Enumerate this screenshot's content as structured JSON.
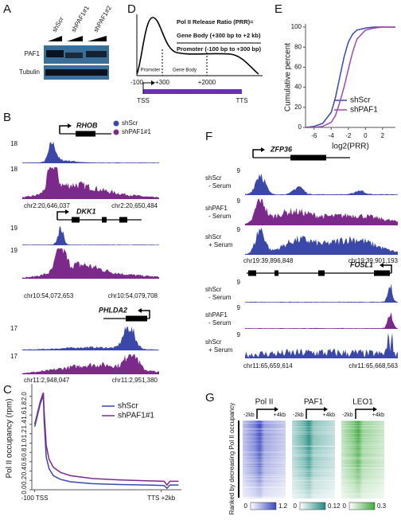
{
  "panel_labels": [
    "A",
    "B",
    "C",
    "D",
    "E",
    "F",
    "G"
  ],
  "panel_a": {
    "lanes": [
      "shScr",
      "shPAF1#1",
      "shPAF1#2"
    ],
    "rows": [
      "PAF1",
      "Tubulin"
    ]
  },
  "panel_b": {
    "legend": [
      {
        "name": "shScr",
        "color": "#3b48a8"
      },
      {
        "name": "shPAF1#1",
        "color": "#7b2a8c"
      }
    ],
    "genes": [
      {
        "name": "RHOB",
        "scale": [
          "18",
          "18"
        ],
        "coords": [
          "chr2:20,646,037",
          "chr2:20,650,484"
        ]
      },
      {
        "name": "DKK1",
        "scale": [
          "19",
          "19"
        ],
        "coords": [
          "chr10:54,072,653",
          "chr10:54,079,708"
        ]
      },
      {
        "name": "PHLDA2",
        "scale": [
          "17",
          "17"
        ],
        "coords": [
          "chr11:2,948,047",
          "chr11:2,951,380"
        ]
      }
    ]
  },
  "panel_d": {
    "formula": [
      "Pol II Release Ratio (PRR)=",
      "Gene Body (+300 bp to +2 kb)",
      "Promoter (-100 bp to +300 bp)"
    ],
    "regions": [
      "Promoter",
      "Gene Body"
    ],
    "positions": [
      "-100",
      "+300",
      "+2000"
    ],
    "ends": [
      "TSS",
      "TTS"
    ]
  },
  "panel_f": {
    "genes": [
      {
        "name": "ZFP36",
        "tracks": [
          [
            "shScr",
            "- Serum"
          ],
          [
            "shPAF1",
            "- Serum"
          ],
          [
            "shScr",
            "+ Serum"
          ]
        ],
        "scale": [
          "9",
          "9",
          "9"
        ],
        "coords": [
          "chr19:39,896,848",
          "chr19:39,901,193"
        ]
      },
      {
        "name": "FOSL1",
        "tracks": [
          [
            "shScr",
            "- Serum"
          ],
          [
            "shPAF1",
            "- Serum"
          ],
          [
            "shScr",
            "+ Serum"
          ]
        ],
        "scale": [
          "9",
          "9",
          "9"
        ],
        "coords": [
          "chr11:65,659,614",
          "chr11:65,668,563"
        ]
      }
    ]
  },
  "panel_g": {
    "ylabel": "Ranked by decreasing Pol II occupancy",
    "columns": [
      {
        "name": "Pol II",
        "ticks": [
          "-2kb",
          "+4kb"
        ],
        "scale": [
          "0",
          "1.2"
        ],
        "color": "#3b48c0"
      },
      {
        "name": "PAF1",
        "ticks": [
          "-2kb",
          "+4kb"
        ],
        "scale": [
          "0",
          "0.12"
        ],
        "color": "#1f8a80"
      },
      {
        "name": "LEO1",
        "ticks": [
          "-2kb",
          "+4kb"
        ],
        "scale": [
          "0",
          "0.3"
        ],
        "color": "#3faa3f"
      }
    ]
  },
  "chart_data": [
    {
      "type": "line",
      "ylabel": "Pol II occupancy (rpm)",
      "x": [
        0,
        2,
        4,
        6,
        6.5,
        8,
        10,
        13,
        18,
        25,
        40,
        60,
        80,
        90,
        92,
        94,
        100
      ],
      "series": [
        {
          "name": "shScr",
          "color": "#3b48a8",
          "values": [
            1.35,
            1.6,
            1.85,
            2.02,
            1.5,
            0.7,
            0.45,
            0.3,
            0.22,
            0.17,
            0.13,
            0.11,
            0.1,
            0.09,
            0.03,
            0.1,
            0.1
          ]
        },
        {
          "name": "shPAF1#1",
          "color": "#7b2a8c",
          "values": [
            1.4,
            1.65,
            1.9,
            2.08,
            1.7,
            0.95,
            0.65,
            0.48,
            0.37,
            0.3,
            0.24,
            0.21,
            0.19,
            0.18,
            0.1,
            0.18,
            0.18
          ]
        }
      ],
      "xlim": [
        -2,
        102
      ],
      "xticks": [
        {
          "value": 0,
          "label": "-100 TSS"
        },
        {
          "value": 88,
          "label": "TTS +2kb"
        }
      ],
      "ylim": [
        0,
        2.2
      ],
      "yticks": [
        {
          "value": 0,
          "label": "0.0"
        },
        0.2,
        0.4,
        0.6,
        0.8,
        {
          "value": 1,
          "label": "1.0"
        },
        1.2,
        1.4,
        1.6,
        1.8,
        {
          "value": 2,
          "label": "2.0"
        }
      ]
    },
    {
      "type": "line",
      "xlabel": "log2(PRR)",
      "ylabel": "Cumulative percent",
      "x": [
        -7,
        -6,
        -5,
        -4,
        -3.5,
        -3,
        -2.5,
        -2,
        -1.5,
        -1,
        0,
        1,
        2,
        3.5
      ],
      "series": [
        {
          "name": "shScr",
          "color": "#3b48a8",
          "values": [
            0,
            1,
            4,
            15,
            30,
            50,
            70,
            85,
            93,
            97,
            99,
            100,
            100,
            100
          ]
        },
        {
          "name": "shPAF1",
          "color": "#a04aa8",
          "values": [
            0,
            0,
            1,
            5,
            12,
            25,
            40,
            58,
            75,
            88,
            97,
            99,
            100,
            100
          ]
        }
      ],
      "xlim": [
        -7,
        3.5
      ],
      "xticks": [
        -6,
        -4,
        -2,
        0,
        2
      ],
      "ylim": [
        0,
        100
      ],
      "yticks": [
        0,
        20,
        40,
        60,
        80,
        100
      ]
    }
  ]
}
